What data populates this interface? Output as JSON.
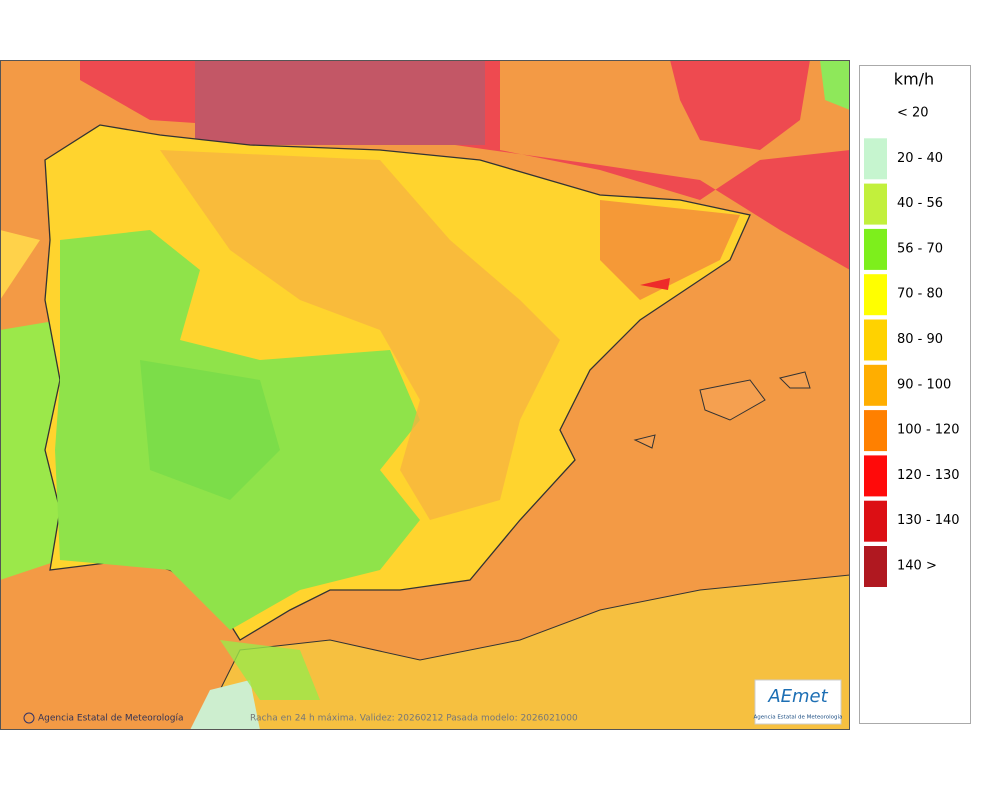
{
  "legend": {
    "title": "km/h",
    "items": [
      {
        "label": "< 20"
      },
      {
        "label": "20 - 40",
        "color": "#c6f5cf"
      },
      {
        "label": "40 - 56",
        "color": "#c2f03c"
      },
      {
        "label": "56 - 70",
        "color": "#7def1c"
      },
      {
        "label": "70 - 80",
        "color": "#ffff00"
      },
      {
        "label": "80 - 90",
        "color": "#ffd200"
      },
      {
        "label": "90 - 100",
        "color": "#ffae00"
      },
      {
        "label": "100 - 120",
        "color": "#ff8000"
      },
      {
        "label": "120 - 130",
        "color": "#ff0a0a"
      },
      {
        "label": "130 - 140",
        "color": "#dc0f14"
      },
      {
        "label": "140 >",
        "color": "#b01820"
      }
    ]
  },
  "footer": {
    "credit": "Agencia Estatal de Meteorología",
    "caption": "Racha en 24 h máxima. Validez: 20260212 Pasada modelo: 2026021000"
  },
  "logo": {
    "name": "AEmet",
    "subtitle": "Agencia Estatal de Meteorología"
  }
}
